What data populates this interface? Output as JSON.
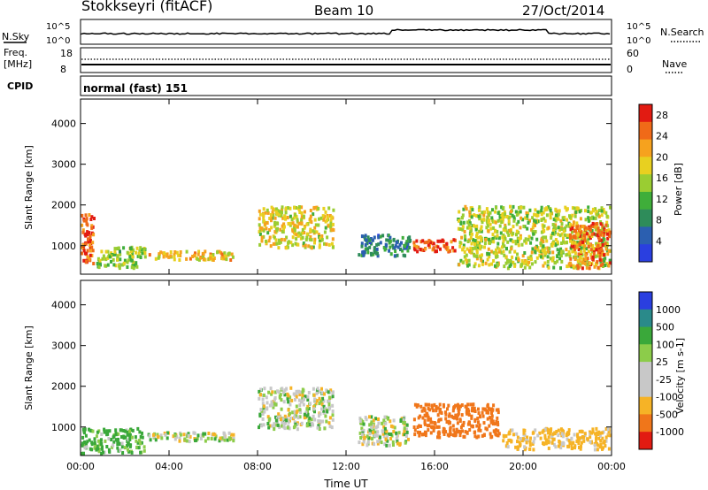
{
  "header": {
    "radar": "Stokkseyri (fitACF)",
    "beam": "Beam 10",
    "date": "27/Oct/2014"
  },
  "top_panels": {
    "nsky_label": "N.Sky",
    "nsearch_label": "N.Search",
    "noise_tick_hi": "10^5",
    "noise_tick_lo": "10^0",
    "freq_label": "Freq.",
    "freq_unit": "[MHz]",
    "freq_tick_hi": "18",
    "freq_tick_lo": "8",
    "nave_label": "Nave",
    "nave_tick_hi": "60",
    "nave_tick_lo": "0",
    "cpid_label": "CPID",
    "cpid_value": "normal (fast) 151"
  },
  "colors": {
    "power_scale": [
      "#2a3fe0",
      "#2b5fb0",
      "#2e8c5a",
      "#3fae3a",
      "#9acd32",
      "#e8d020",
      "#f6a21e",
      "#f06a18",
      "#e21b12"
    ],
    "velocity_scale": [
      "#e21b12",
      "#f0761a",
      "#f6b326",
      "#c8c8c8",
      "#c8c8c8",
      "#8ccc4a",
      "#3aa83a",
      "#2a8a8a",
      "#2a3fe0"
    ],
    "ground_scatter": "#c8c8c8"
  },
  "chart_data": [
    {
      "type": "heatmap",
      "name": "power",
      "ylabel": "Slant Range [km]",
      "yticks": [
        "1000",
        "2000",
        "3000",
        "4000"
      ],
      "ylim": [
        300,
        4600
      ],
      "xlim": [
        0,
        24
      ],
      "colorbar_label": "Power [dB]",
      "colorbar_ticks": [
        "4",
        "8",
        "12",
        "16",
        "20",
        "24",
        "28"
      ],
      "colorbar_range": [
        0,
        30
      ],
      "features": [
        {
          "t0": 0.0,
          "t1": 0.7,
          "r0": 500,
          "r1": 1800,
          "level": 26
        },
        {
          "t0": 0.7,
          "t1": 3.0,
          "r0": 400,
          "r1": 1000,
          "level": 14
        },
        {
          "t0": 3.0,
          "t1": 7.0,
          "r0": 600,
          "r1": 900,
          "level": 20
        },
        {
          "t0": 8.0,
          "t1": 11.5,
          "r0": 900,
          "r1": 2000,
          "level": 18
        },
        {
          "t0": 12.5,
          "t1": 15.0,
          "r0": 700,
          "r1": 1300,
          "level": 8
        },
        {
          "t0": 15.0,
          "t1": 17.0,
          "r0": 800,
          "r1": 1200,
          "level": 26
        },
        {
          "t0": 17.0,
          "t1": 24.0,
          "r0": 400,
          "r1": 2000,
          "level": 16
        },
        {
          "t0": 22.0,
          "t1": 24.0,
          "r0": 400,
          "r1": 1600,
          "level": 24
        }
      ]
    },
    {
      "type": "heatmap",
      "name": "velocity",
      "ylabel": "Slant Range [km]",
      "xlabel": "Time UT",
      "yticks": [
        "1000",
        "2000",
        "3000",
        "4000"
      ],
      "ylim": [
        300,
        4600
      ],
      "xlim": [
        0,
        24
      ],
      "xticks": [
        "00:00",
        "04:00",
        "08:00",
        "12:00",
        "16:00",
        "20:00",
        "00:00"
      ],
      "colorbar_label": "Velocity [m s-1]",
      "colorbar_ticks": [
        "1000",
        "500",
        "100",
        "25",
        "-25",
        "-100",
        "-500",
        "-1000"
      ],
      "features": [
        {
          "t0": 0.0,
          "t1": 3.0,
          "r0": 300,
          "r1": 1000,
          "velocity": 150
        },
        {
          "t0": 3.0,
          "t1": 7.0,
          "r0": 600,
          "r1": 900,
          "velocity": 0
        },
        {
          "t0": 8.0,
          "t1": 11.5,
          "r0": 900,
          "r1": 2000,
          "velocity": 0
        },
        {
          "t0": 12.5,
          "t1": 15.0,
          "r0": 500,
          "r1": 1300,
          "velocity": 0
        },
        {
          "t0": 15.0,
          "t1": 19.0,
          "r0": 700,
          "r1": 1600,
          "velocity": -700
        },
        {
          "t0": 19.0,
          "t1": 24.0,
          "r0": 400,
          "r1": 1000,
          "velocity": -200
        }
      ]
    }
  ]
}
